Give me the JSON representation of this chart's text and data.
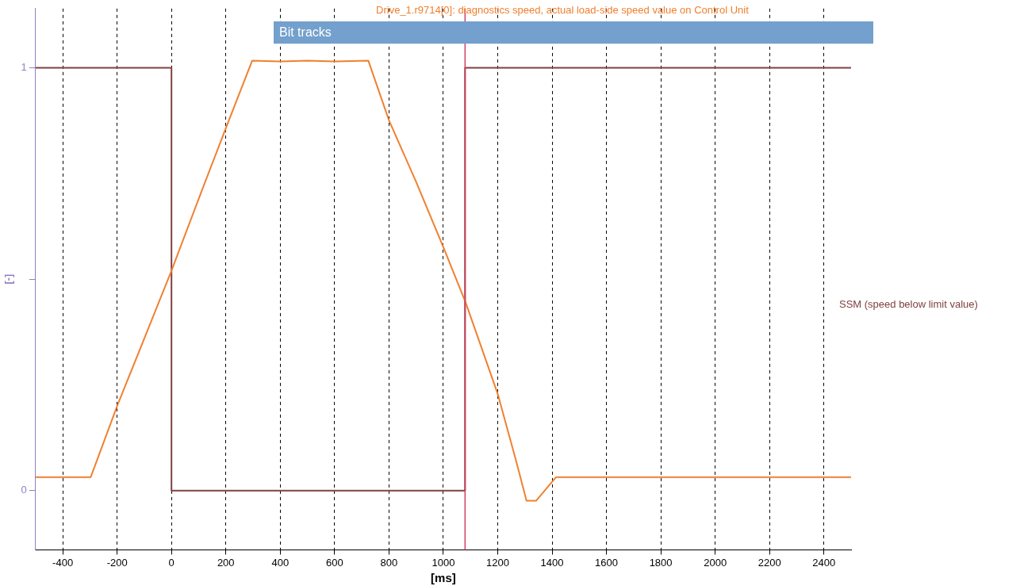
{
  "chart_data": {
    "type": "line",
    "subtitle": "Bit tracks",
    "xlabel": "[ms]",
    "ylabel": "[-]",
    "xlim": [
      -500,
      2500
    ],
    "xticks": [
      -400,
      -200,
      0,
      200,
      400,
      600,
      800,
      1000,
      1200,
      1400,
      1600,
      1800,
      2000,
      2200,
      2400
    ],
    "ylim": [
      -0.14,
      1.14
    ],
    "yticks": [
      0,
      {
        "value": 0.5,
        "label": null
      },
      1
    ],
    "grid": "x",
    "legend": false,
    "marker": "none",
    "series": [
      {
        "name": "Drive_1.r9714[0]: diagnostics speed, actual load-side speed value on Control Unit",
        "type": "line",
        "color": "#f08030",
        "x": [
          -500,
          -297,
          -200,
          -100,
          0,
          100,
          200,
          297,
          400,
          500,
          600,
          724,
          800,
          900,
          1000,
          1082,
          1200,
          1268,
          1306,
          1341,
          1415,
          2500
        ],
        "values": [
          0.032,
          0.032,
          0.2,
          0.36,
          0.52,
          0.69,
          0.857,
          1.017,
          1.015,
          1.017,
          1.015,
          1.017,
          0.876,
          0.73,
          0.576,
          0.445,
          0.229,
          0.07,
          -0.024,
          -0.024,
          0.032,
          0.032
        ]
      },
      {
        "name": "SSM (speed below limit value)",
        "type": "line",
        "color": "#804040",
        "x": [
          -500,
          0,
          0,
          1080,
          1080,
          2500
        ],
        "values": [
          1,
          1,
          0,
          0,
          1,
          1
        ]
      }
    ],
    "ref_lines": [
      {
        "axis": "x",
        "value": 1080,
        "color": "#d04060",
        "line_style": "solid"
      }
    ]
  }
}
